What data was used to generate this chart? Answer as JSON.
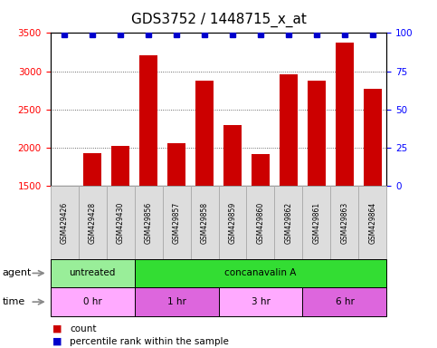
{
  "title": "GDS3752 / 1448715_x_at",
  "samples": [
    "GSM429426",
    "GSM429428",
    "GSM429430",
    "GSM429856",
    "GSM429857",
    "GSM429858",
    "GSM429859",
    "GSM429860",
    "GSM429862",
    "GSM429861",
    "GSM429863",
    "GSM429864"
  ],
  "counts": [
    1510,
    1930,
    2030,
    3210,
    2060,
    2880,
    2300,
    1920,
    2960,
    2880,
    3380,
    2770
  ],
  "percentile_ranks": [
    99,
    99,
    99,
    99,
    99,
    99,
    99,
    99,
    99,
    99,
    99,
    99
  ],
  "ylim_left": [
    1500,
    3500
  ],
  "ylim_right": [
    0,
    100
  ],
  "yticks_left": [
    1500,
    2000,
    2500,
    3000,
    3500
  ],
  "yticks_right": [
    0,
    25,
    50,
    75,
    100
  ],
  "bar_color": "#cc0000",
  "dot_color": "#0000cc",
  "agent_groups": [
    {
      "label": "untreated",
      "start": 0,
      "end": 3,
      "color": "#99ee99"
    },
    {
      "label": "concanavalin A",
      "start": 3,
      "end": 12,
      "color": "#33dd33"
    }
  ],
  "time_groups": [
    {
      "label": "0 hr",
      "start": 0,
      "end": 3,
      "color": "#ffaaff"
    },
    {
      "label": "1 hr",
      "start": 3,
      "end": 6,
      "color": "#dd66dd"
    },
    {
      "label": "3 hr",
      "start": 6,
      "end": 9,
      "color": "#ffaaff"
    },
    {
      "label": "6 hr",
      "start": 9,
      "end": 12,
      "color": "#dd66dd"
    }
  ],
  "legend_count_color": "#cc0000",
  "legend_pct_color": "#0000cc",
  "legend_count_label": "count",
  "legend_pct_label": "percentile rank within the sample",
  "agent_label": "agent",
  "time_label": "time",
  "bar_bottom": 1500,
  "label_box_color": "#dddddd",
  "label_box_edge": "#aaaaaa",
  "grid_linestyle": "dotted",
  "grid_color": "#555555",
  "background_color": "#ffffff"
}
